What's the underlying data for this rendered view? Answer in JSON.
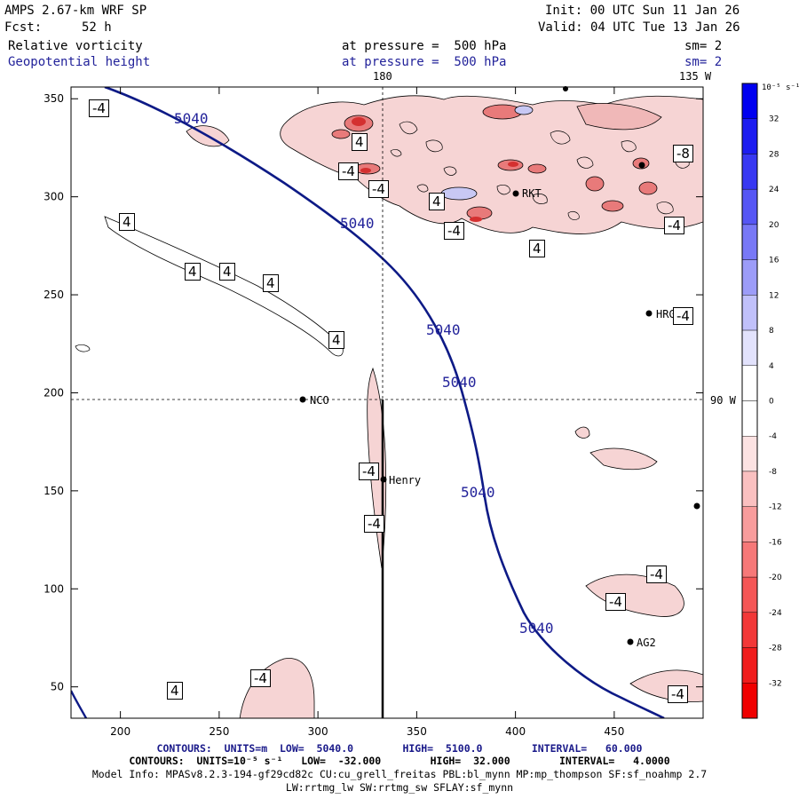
{
  "header": {
    "model": "AMPS 2.67-km WRF SP",
    "init": "Init: 00 UTC Sun 11 Jan 26",
    "fcst_label": "Fcst:",
    "fcst_value": "52 h",
    "valid": "Valid: 04 UTC Tue 13 Jan 26",
    "field1": "Relative vorticity",
    "field1_level": "at pressure =  500 hPa",
    "field1_sm": "sm= 2",
    "field2": "Geopotential height",
    "field2_level": "at pressure =  500 hPa",
    "field2_sm": "sm= 2"
  },
  "map": {
    "lon_labels": {
      "top_180": "180",
      "top_135w": "135 W",
      "right_90w": "90 W"
    },
    "x_ticks": [
      "200",
      "250",
      "300",
      "350",
      "400",
      "450"
    ],
    "y_ticks": [
      "350",
      "300",
      "250",
      "200",
      "150",
      "100",
      "50"
    ],
    "x_tick_values": [
      200,
      250,
      300,
      350,
      400,
      450
    ],
    "y_tick_values": [
      350,
      300,
      250,
      200,
      150,
      100,
      50
    ],
    "xlim": [
      175,
      495
    ],
    "ylim": [
      34,
      356
    ],
    "geopotential_contour_label": "5040",
    "vorticity_labels": {
      "neg4": "-4",
      "pos4": "4",
      "neg8": "-8"
    },
    "stations": [
      "NCO",
      "Henry",
      "HRG",
      "AG2",
      "RKT"
    ],
    "colors": {
      "positive_vorticity": "#1414d8",
      "negative_vorticity": "#e8181c",
      "height_contour": "#0d1a86"
    }
  },
  "colorbar": {
    "unit": "10⁻⁵ s⁻¹",
    "labels": [
      "32",
      "28",
      "24",
      "20",
      "16",
      "12",
      "8",
      "4",
      "0",
      "-4",
      "-8",
      "-12",
      "-16",
      "-20",
      "-24",
      "-28",
      "-32"
    ],
    "range": [
      -36,
      36
    ]
  },
  "footer": {
    "line1": "CONTOURS:  UNITS=m  LOW=  5040.0        HIGH=  5100.0        INTERVAL=   60.000",
    "line2": "CONTOURS:  UNITS=10⁻⁵ s⁻¹   LOW=  -32.000        HIGH=  32.000        INTERVAL=   4.0000",
    "line3": "Model Info: MPASv8.2.3-194-gf29cd82c CU:cu_grell_freitas PBL:bl_mynn MP:mp_thompson SF:sf_noahmp 2.7",
    "line4": "LW:rrtmg_lw SW:rrtmg_sw SFLAY:sf_mynn"
  }
}
